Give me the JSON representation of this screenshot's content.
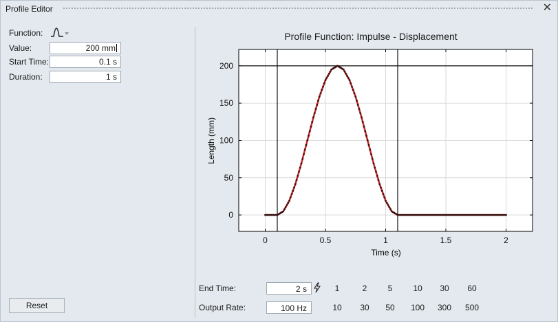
{
  "window": {
    "title": "Profile Editor",
    "close_icon": "close-icon"
  },
  "params": {
    "function_label": "Function:",
    "function_icon": "impulse-icon",
    "value_label": "Value:",
    "value": "200 mm",
    "start_label": "Start Time:",
    "start": "0.1 s",
    "duration_label": "Duration:",
    "duration": "1 s"
  },
  "reset_label": "Reset",
  "chart_data": {
    "type": "line",
    "title": "Profile Function: Impulse - Displacement",
    "xlabel": "Time (s)",
    "ylabel": "Length (mm)",
    "xlim": [
      -0.22,
      2.22
    ],
    "ylim": [
      -22,
      222
    ],
    "xticks": [
      0,
      0.5,
      1,
      1.5,
      2
    ],
    "xtick_labels": [
      "0",
      "0.5",
      "1",
      "1.5",
      "2"
    ],
    "yticks": [
      0,
      50,
      100,
      150,
      200
    ],
    "ytick_labels": [
      "0",
      "50",
      "100",
      "150",
      "200"
    ],
    "grid": true,
    "markers": {
      "vertical_lines_x": [
        0.1,
        1.1
      ],
      "horizontal_line_y": 200
    },
    "series": [
      {
        "color": "#c62828",
        "marker_color": "#3a1010",
        "x": [
          0,
          0.1,
          0.15,
          0.2,
          0.25,
          0.3,
          0.35,
          0.4,
          0.45,
          0.5,
          0.55,
          0.6,
          0.65,
          0.7,
          0.75,
          0.8,
          0.85,
          0.9,
          0.95,
          1.0,
          1.05,
          1.1,
          1.2,
          1.4,
          1.6,
          1.8,
          2.0
        ],
        "y": [
          0,
          0,
          4.9,
          19.1,
          41.2,
          69.1,
          100,
          130.9,
          158.8,
          180.9,
          195.1,
          200,
          195.1,
          180.9,
          158.8,
          130.9,
          100,
          69.1,
          41.2,
          19.1,
          4.9,
          0,
          0,
          0,
          0,
          0,
          0
        ]
      }
    ]
  },
  "bottom": {
    "end_time_label": "End Time:",
    "end_time": "2 s",
    "output_rate_label": "Output Rate:",
    "output_rate": "100 Hz",
    "end_presets": [
      "1",
      "2",
      "5",
      "10",
      "30",
      "60"
    ],
    "rate_presets": [
      "10",
      "30",
      "50",
      "100",
      "300",
      "500"
    ],
    "link_icon": "lightning-icon"
  }
}
